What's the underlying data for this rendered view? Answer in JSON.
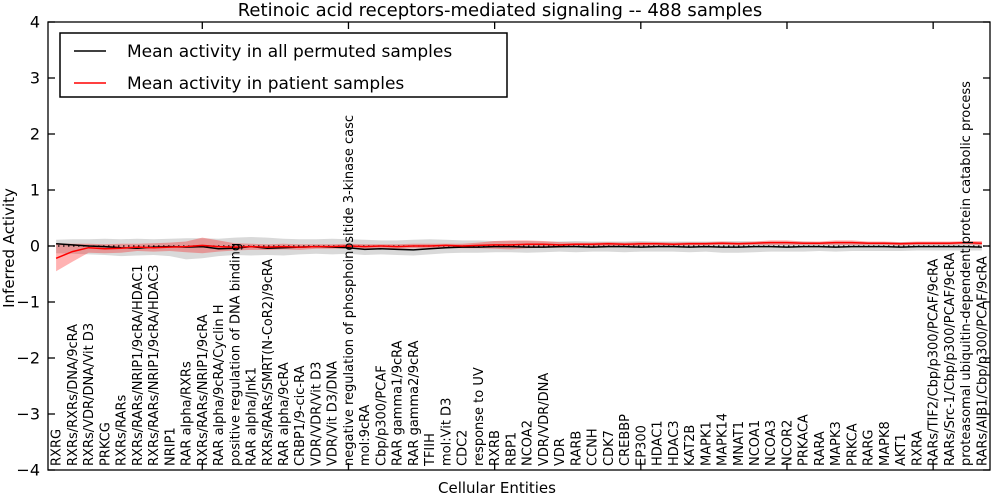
{
  "title": "Retinoic acid receptors-mediated signaling -- 488 samples",
  "axes": {
    "xlabel": "Cellular Entities",
    "ylabel": "Inferred Activity",
    "ylim": [
      -4,
      4
    ],
    "ytick_values": [
      -4,
      -3,
      -2,
      -1,
      0,
      1,
      2,
      3,
      4
    ],
    "ytick_labels": [
      "−4",
      "−3",
      "−2",
      "−1",
      "0",
      "1",
      "2",
      "3",
      "4"
    ],
    "xtick_indices": [
      9,
      18,
      27,
      36,
      45,
      54
    ]
  },
  "legend": {
    "items": [
      {
        "label": "Mean activity in all permuted samples",
        "color": "#000000"
      },
      {
        "label": "Mean activity in patient samples",
        "color": "#ff0000"
      }
    ]
  },
  "colors": {
    "frame": "#000000",
    "zero_line": "#000000",
    "permuted_line": "#000000",
    "patient_line": "#ff0000",
    "permuted_band": "#888888",
    "permuted_band_opacity": 0.32,
    "patient_band": "#ff0000",
    "patient_band_opacity": 0.3
  },
  "chart_data": {
    "type": "line",
    "title": "Retinoic acid receptors-mediated signaling -- 488 samples",
    "xlabel": "Cellular Entities",
    "ylabel": "Inferred Activity",
    "ylim": [
      -4,
      4
    ],
    "grid": false,
    "legend_position": "upper left",
    "reference_line_y": 0,
    "categories": [
      "RXRG",
      "RXRs/RXRs/DNA/9cRA",
      "RXRs/VDR/DNA/Vit D3",
      "PRKCG",
      "RXRs/RARs",
      "RXRs/RARs/NRIP1/9cRA/HDAC1",
      "RXRs/RARs/NRIP1/9cRA/HDAC3",
      "NRIP1",
      "RAR alpha/RXRs",
      "RXRs/RARs/NRIP1/9cRA",
      "RAR alpha/9cRA/Cyclin H",
      "positive regulation of DNA binding",
      "RAR alpha/Jnk1",
      "RXRs/RARs/SMRT(N-CoR2)/9cRA",
      "RAR alpha/9cRA",
      "CRBP1/9-cic-RA",
      "VDR/VDR/Vit D3",
      "VDR/Vit D3/DNA",
      "negative regulation of phosphoinositide 3-kinase casc",
      "mol:9cRA",
      "Cbp/p300/PCAF",
      "RAR gamma1/9cRA",
      "RAR gamma2/9cRA",
      "TFIIH",
      "mol:Vit D3",
      "CDC2",
      "response to UV",
      "RXRB",
      "RBP1",
      "NCOA2",
      "VDR/VDR/DNA",
      "VDR",
      "RARB",
      "CCNH",
      "CDK7",
      "CREBBP",
      "EP300",
      "HDAC1",
      "HDAC3",
      "KAT2B",
      "MAPK1",
      "MAPK14",
      "MNAT1",
      "NCOA1",
      "NCOA3",
      "NCOR2",
      "PRKACA",
      "RARA",
      "MAPK3",
      "PRKCA",
      "RARG",
      "MAPK8",
      "AKT1",
      "RXRA",
      "RARs/TIF2/Cbp/p300/PCAF/9cRA",
      "RARs/Src-1/Cbp/p300/PCAF/9cRA",
      "proteasomal ubiquitin-dependent protein catabolic process",
      "RARs/AIB1/Cbp/p300/PCAF/9cRA"
    ],
    "series": [
      {
        "name": "Mean activity in all permuted samples",
        "color": "#000000",
        "values": [
          0.04,
          0.02,
          0.0,
          -0.01,
          -0.03,
          -0.04,
          -0.02,
          -0.01,
          -0.02,
          -0.01,
          -0.05,
          -0.04,
          -0.01,
          -0.04,
          -0.03,
          -0.02,
          -0.01,
          -0.02,
          -0.03,
          -0.06,
          -0.05,
          -0.06,
          -0.07,
          -0.05,
          -0.03,
          -0.02,
          -0.02,
          -0.01,
          -0.01,
          -0.02,
          -0.02,
          -0.01,
          -0.01,
          -0.02,
          -0.01,
          -0.01,
          -0.02,
          -0.01,
          -0.01,
          -0.02,
          -0.01,
          -0.02,
          -0.02,
          -0.01,
          -0.01,
          -0.02,
          -0.01,
          -0.01,
          -0.02,
          -0.01,
          -0.01,
          -0.01,
          -0.02,
          -0.01,
          -0.01,
          -0.01,
          -0.01,
          -0.02
        ]
      },
      {
        "name": "Mean activity in patient samples",
        "color": "#ff0000",
        "values": [
          -0.22,
          -0.1,
          -0.03,
          -0.05,
          -0.04,
          -0.02,
          -0.03,
          -0.02,
          -0.01,
          0.01,
          -0.01,
          -0.02,
          -0.01,
          -0.02,
          -0.01,
          -0.02,
          -0.01,
          -0.01,
          0.0,
          -0.01,
          0.0,
          -0.01,
          0.0,
          0.0,
          0.01,
          0.0,
          0.01,
          0.02,
          0.02,
          0.03,
          0.03,
          0.02,
          0.03,
          0.03,
          0.04,
          0.03,
          0.04,
          0.04,
          0.03,
          0.04,
          0.04,
          0.05,
          0.04,
          0.05,
          0.06,
          0.06,
          0.05,
          0.05,
          0.06,
          0.06,
          0.05,
          0.05,
          0.04,
          0.05,
          0.05,
          0.05,
          0.06,
          0.05
        ]
      }
    ],
    "bands": [
      {
        "name": "permuted-confidence-band",
        "upper": [
          0.11,
          0.12,
          0.12,
          0.13,
          0.12,
          0.13,
          0.12,
          0.13,
          0.14,
          0.14,
          0.13,
          0.15,
          0.16,
          0.15,
          0.13,
          0.12,
          0.12,
          0.13,
          0.12,
          0.11,
          0.1,
          0.1,
          0.11,
          0.12,
          0.11,
          0.1,
          0.1,
          0.09,
          0.09,
          0.09,
          0.08,
          0.08,
          0.09,
          0.08,
          0.08,
          0.08,
          0.09,
          0.08,
          0.08,
          0.08,
          0.08,
          0.08,
          0.09,
          0.08,
          0.08,
          0.08,
          0.08,
          0.07,
          0.08,
          0.08,
          0.07,
          0.07,
          0.07,
          0.07,
          0.07,
          0.07,
          0.07,
          0.06
        ],
        "lower": [
          -0.13,
          -0.14,
          -0.15,
          -0.16,
          -0.18,
          -0.17,
          -0.16,
          -0.18,
          -0.24,
          -0.22,
          -0.18,
          -0.16,
          -0.17,
          -0.16,
          -0.17,
          -0.15,
          -0.14,
          -0.15,
          -0.14,
          -0.16,
          -0.15,
          -0.16,
          -0.17,
          -0.15,
          -0.13,
          -0.12,
          -0.12,
          -0.11,
          -0.11,
          -0.12,
          -0.11,
          -0.1,
          -0.11,
          -0.1,
          -0.1,
          -0.11,
          -0.1,
          -0.1,
          -0.1,
          -0.11,
          -0.1,
          -0.12,
          -0.12,
          -0.11,
          -0.1,
          -0.1,
          -0.1,
          -0.09,
          -0.1,
          -0.09,
          -0.09,
          -0.09,
          -0.09,
          -0.08,
          -0.08,
          -0.08,
          -0.08,
          -0.08
        ]
      },
      {
        "name": "patient-confidence-band",
        "upper": [
          0.05,
          0.04,
          0.04,
          0.03,
          0.04,
          0.04,
          0.05,
          0.06,
          0.08,
          0.15,
          0.1,
          0.05,
          0.04,
          0.03,
          0.04,
          0.03,
          0.03,
          0.03,
          0.04,
          0.03,
          0.03,
          0.03,
          0.04,
          0.04,
          0.04,
          0.04,
          0.06,
          0.09,
          0.1,
          0.1,
          0.09,
          0.07,
          0.06,
          0.06,
          0.07,
          0.06,
          0.07,
          0.07,
          0.06,
          0.07,
          0.07,
          0.08,
          0.07,
          0.08,
          0.1,
          0.1,
          0.08,
          0.08,
          0.1,
          0.1,
          0.08,
          0.08,
          0.07,
          0.08,
          0.08,
          0.08,
          0.09,
          0.09
        ],
        "lower": [
          -0.45,
          -0.28,
          -0.12,
          -0.13,
          -0.12,
          -0.09,
          -0.1,
          -0.09,
          -0.11,
          -0.13,
          -0.1,
          -0.08,
          -0.07,
          -0.07,
          -0.06,
          -0.07,
          -0.05,
          -0.05,
          -0.04,
          -0.05,
          -0.04,
          -0.05,
          -0.04,
          -0.04,
          -0.03,
          -0.04,
          -0.04,
          -0.05,
          -0.06,
          -0.04,
          -0.03,
          -0.03,
          -0.01,
          -0.01,
          0.0,
          -0.01,
          0.0,
          0.01,
          0.0,
          0.01,
          0.01,
          0.02,
          0.01,
          0.02,
          0.02,
          0.02,
          0.02,
          0.02,
          0.02,
          0.02,
          0.02,
          0.02,
          0.01,
          0.02,
          0.02,
          0.02,
          0.03,
          0.01
        ]
      }
    ]
  }
}
